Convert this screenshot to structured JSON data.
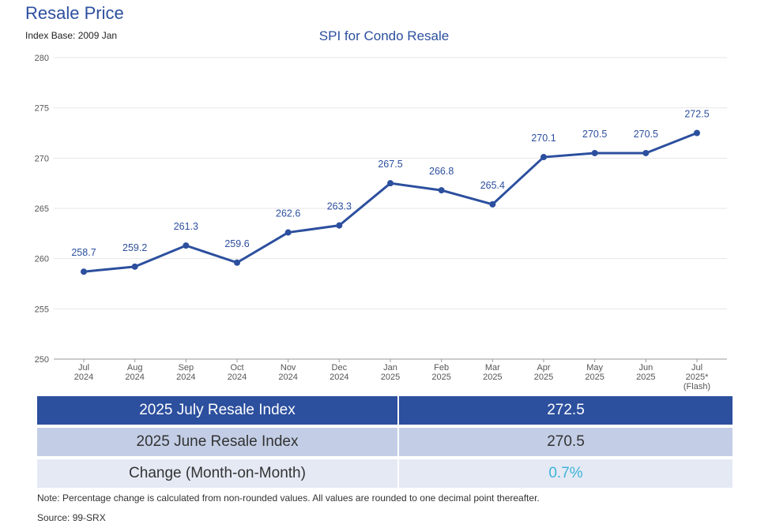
{
  "header": {
    "title": "Resale Price",
    "index_base": "Index Base: 2009 Jan"
  },
  "chart_data": {
    "type": "line",
    "title": "SPI for Condo Resale",
    "xlabel": "",
    "ylabel": "",
    "ylim": [
      250,
      280
    ],
    "yticks": [
      250,
      255,
      260,
      265,
      270,
      275,
      280
    ],
    "grid": true,
    "categories": [
      [
        "Jul",
        "2024"
      ],
      [
        "Aug",
        "2024"
      ],
      [
        "Sep",
        "2024"
      ],
      [
        "Oct",
        "2024"
      ],
      [
        "Nov",
        "2024"
      ],
      [
        "Dec",
        "2024"
      ],
      [
        "Jan",
        "2025"
      ],
      [
        "Feb",
        "2025"
      ],
      [
        "Mar",
        "2025"
      ],
      [
        "Apr",
        "2025"
      ],
      [
        "May",
        "2025"
      ],
      [
        "Jun",
        "2025"
      ],
      [
        "Jul",
        "2025*",
        "(Flash)"
      ]
    ],
    "series": [
      {
        "name": "SPI for Condo Resale",
        "color": "#2c4f9e",
        "values": [
          258.7,
          259.2,
          261.3,
          259.6,
          262.6,
          263.3,
          267.5,
          266.8,
          265.4,
          270.1,
          270.5,
          270.5,
          272.5
        ],
        "labels": [
          "258.7",
          "259.2",
          "261.3",
          "259.6",
          "262.6",
          "263.3",
          "267.5",
          "266.8",
          "265.4",
          "270.1",
          "270.5",
          "270.5",
          "272.5"
        ]
      }
    ]
  },
  "summary": {
    "july_label": "2025 July Resale Index",
    "july_value": "272.5",
    "june_label": "2025 June Resale Index",
    "june_value": "270.5",
    "change_label": "Change (Month-on-Month)",
    "change_value": "0.7%"
  },
  "footer": {
    "note": "Note: Percentage change is calculated from non-rounded values.  All values are rounded to one decimal point thereafter.",
    "source": "Source: 99-SRX"
  },
  "colors": {
    "accent": "#2c4f9e",
    "light_row": "#c3cee6",
    "lighter_row": "#e4e9f4",
    "change_text": "#3fb4d8"
  }
}
